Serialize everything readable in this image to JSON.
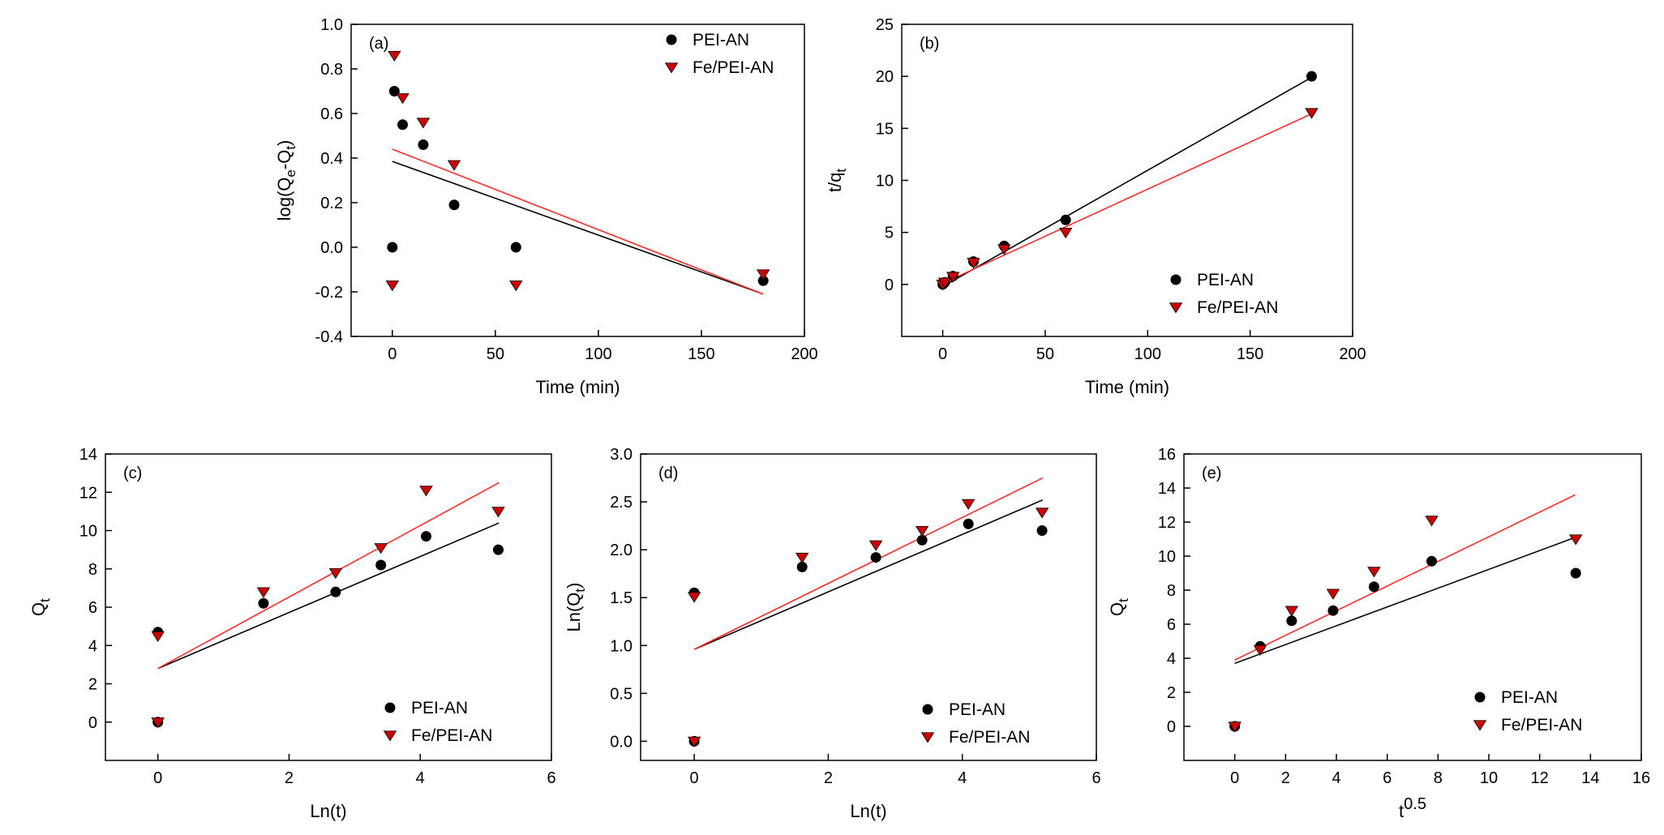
{
  "figure": {
    "series_styles": [
      {
        "name": "PEI-AN",
        "marker": "circle",
        "color": "#000000"
      },
      {
        "name": "Fe/PEI-AN",
        "marker": "triangle-down",
        "color": "#cc0000"
      }
    ]
  },
  "chart_data": [
    {
      "panel_label": "(a)",
      "type": "scatter",
      "xlabel": "Time (min)",
      "ylabel": "log(Qe-Qt)",
      "ylabel_parts": [
        "log(Q",
        "e",
        "-Q",
        "t",
        ")"
      ],
      "xlim": [
        -20,
        200
      ],
      "ylim": [
        -0.4,
        1.0
      ],
      "xticks": [
        0,
        50,
        100,
        150,
        200
      ],
      "yticks": [
        -0.4,
        -0.2,
        0.0,
        0.2,
        0.4,
        0.6,
        0.8,
        1.0
      ],
      "ytick_labels": [
        "-0.4",
        "-0.2",
        "0.0",
        "0.2",
        "0.4",
        "0.6",
        "0.8",
        "1.0"
      ],
      "xtick_labels": [
        "0",
        "50",
        "100",
        "150",
        "200"
      ],
      "legend": {
        "position": "top-right",
        "entries": [
          "PEI-AN",
          "Fe/PEI-AN"
        ]
      },
      "series": [
        {
          "name": "PEI-AN",
          "x": [
            0,
            1,
            5,
            15,
            30,
            60,
            180
          ],
          "y": [
            0.0,
            0.7,
            0.55,
            0.46,
            0.19,
            0.0,
            -0.15
          ],
          "fit": {
            "x": [
              0,
              180
            ],
            "y": [
              0.385,
              -0.21
            ]
          }
        },
        {
          "name": "Fe/PEI-AN",
          "x": [
            0,
            1,
            5,
            15,
            30,
            60,
            180
          ],
          "y": [
            -0.17,
            0.86,
            0.67,
            0.56,
            0.37,
            -0.17,
            -0.12
          ],
          "fit": {
            "x": [
              0,
              180
            ],
            "y": [
              0.44,
              -0.21
            ]
          }
        }
      ]
    },
    {
      "panel_label": "(b)",
      "type": "scatter",
      "xlabel": "Time (min)",
      "ylabel": "t/qt",
      "ylabel_parts": [
        "t/q",
        "t",
        "",
        "",
        ""
      ],
      "xlim": [
        -20,
        200
      ],
      "ylim": [
        -5,
        25
      ],
      "xticks": [
        0,
        50,
        100,
        150,
        200
      ],
      "yticks": [
        0,
        5,
        10,
        15,
        20,
        25
      ],
      "ytick_labels": [
        "0",
        "5",
        "10",
        "15",
        "20",
        "25"
      ],
      "xtick_labels": [
        "0",
        "50",
        "100",
        "150",
        "200"
      ],
      "legend": {
        "position": "bottom-right",
        "entries": [
          "PEI-AN",
          "Fe/PEI-AN"
        ]
      },
      "series": [
        {
          "name": "PEI-AN",
          "x": [
            0,
            1,
            5,
            15,
            30,
            60,
            180
          ],
          "y": [
            0.0,
            0.2,
            0.8,
            2.2,
            3.7,
            6.2,
            20.0
          ],
          "fit": {
            "x": [
              0,
              180
            ],
            "y": [
              -0.2,
              19.9
            ]
          }
        },
        {
          "name": "Fe/PEI-AN",
          "x": [
            0,
            1,
            5,
            15,
            30,
            60,
            180
          ],
          "y": [
            0.0,
            0.2,
            0.75,
            2.1,
            3.4,
            5.0,
            16.5
          ],
          "fit": {
            "x": [
              0,
              180
            ],
            "y": [
              0.1,
              16.4
            ]
          }
        }
      ]
    },
    {
      "panel_label": "(c)",
      "type": "scatter",
      "xlabel": "Ln(t)",
      "ylabel": "Qt",
      "ylabel_parts": [
        "Q",
        "t",
        "",
        "",
        ""
      ],
      "xlim": [
        -0.8,
        6
      ],
      "ylim": [
        -2,
        14
      ],
      "xticks": [
        0,
        2,
        4,
        6
      ],
      "yticks": [
        0,
        2,
        4,
        6,
        8,
        10,
        12,
        14
      ],
      "ytick_labels": [
        "0",
        "2",
        "4",
        "6",
        "8",
        "10",
        "12",
        "14"
      ],
      "xtick_labels": [
        "0",
        "2",
        "4",
        "6"
      ],
      "legend": {
        "position": "bottom-right",
        "entries": [
          "PEI-AN",
          "Fe/PEI-AN"
        ]
      },
      "series": [
        {
          "name": "PEI-AN",
          "x": [
            0,
            0,
            1.61,
            2.71,
            3.4,
            4.09,
            5.19
          ],
          "y": [
            0.0,
            4.7,
            6.2,
            6.8,
            8.2,
            9.7,
            9.0
          ],
          "fit": {
            "x": [
              0,
              5.2
            ],
            "y": [
              2.8,
              10.4
            ]
          }
        },
        {
          "name": "Fe/PEI-AN",
          "x": [
            0,
            0,
            1.61,
            2.71,
            3.4,
            4.09,
            5.19
          ],
          "y": [
            0.0,
            4.5,
            6.8,
            7.8,
            9.1,
            12.1,
            11.0
          ],
          "fit": {
            "x": [
              0,
              5.2
            ],
            "y": [
              2.8,
              12.5
            ]
          }
        }
      ]
    },
    {
      "panel_label": "(d)",
      "type": "scatter",
      "xlabel": "Ln(t)",
      "ylabel": "Ln(Qt)",
      "ylabel_parts": [
        "Ln(Q",
        "t",
        ")",
        "",
        ""
      ],
      "xlim": [
        -0.8,
        6
      ],
      "ylim": [
        -0.2,
        3.0
      ],
      "xticks": [
        0,
        2,
        4,
        6
      ],
      "yticks": [
        0.0,
        0.5,
        1.0,
        1.5,
        2.0,
        2.5,
        3.0
      ],
      "ytick_labels": [
        "0.0",
        "0.5",
        "1.0",
        "1.5",
        "2.0",
        "2.5",
        "3.0"
      ],
      "xtick_labels": [
        "0",
        "2",
        "4",
        "6"
      ],
      "legend": {
        "position": "bottom-right",
        "entries": [
          "PEI-AN",
          "Fe/PEI-AN"
        ]
      },
      "series": [
        {
          "name": "PEI-AN",
          "x": [
            0,
            0,
            1.61,
            2.71,
            3.4,
            4.09,
            5.19
          ],
          "y": [
            0.0,
            1.55,
            1.82,
            1.92,
            2.1,
            2.27,
            2.2
          ],
          "fit": {
            "x": [
              0,
              5.2
            ],
            "y": [
              0.96,
              2.52
            ]
          }
        },
        {
          "name": "Fe/PEI-AN",
          "x": [
            0,
            0,
            1.61,
            2.71,
            3.4,
            4.09,
            5.19
          ],
          "y": [
            0.0,
            1.51,
            1.92,
            2.05,
            2.2,
            2.48,
            2.39
          ],
          "fit": {
            "x": [
              0,
              5.2
            ],
            "y": [
              0.96,
              2.75
            ]
          }
        }
      ]
    },
    {
      "panel_label": "(e)",
      "type": "scatter",
      "xlabel": "t0.5",
      "xlabel_parts": [
        "t",
        "0.5"
      ],
      "ylabel": "Qt",
      "ylabel_parts": [
        "Q",
        "t",
        "",
        "",
        ""
      ],
      "xlim": [
        -2,
        16
      ],
      "ylim": [
        -2,
        16
      ],
      "xticks": [
        0,
        2,
        4,
        6,
        8,
        10,
        12,
        14,
        16
      ],
      "yticks": [
        0,
        2,
        4,
        6,
        8,
        10,
        12,
        14,
        16
      ],
      "ytick_labels": [
        "0",
        "2",
        "4",
        "6",
        "8",
        "10",
        "12",
        "14",
        "16"
      ],
      "xtick_labels": [
        "0",
        "2",
        "4",
        "6",
        "8",
        "10",
        "12",
        "14",
        "16"
      ],
      "legend": {
        "position": "bottom-right",
        "entries": [
          "PEI-AN",
          "Fe/PEI-AN"
        ]
      },
      "series": [
        {
          "name": "PEI-AN",
          "x": [
            0,
            1.0,
            2.24,
            3.87,
            5.48,
            7.75,
            13.42
          ],
          "y": [
            0.0,
            4.7,
            6.2,
            6.8,
            8.2,
            9.7,
            9.0
          ],
          "fit": {
            "x": [
              0,
              13.4
            ],
            "y": [
              3.7,
              11.1
            ]
          }
        },
        {
          "name": "Fe/PEI-AN",
          "x": [
            0,
            1.0,
            2.24,
            3.87,
            5.48,
            7.75,
            13.42
          ],
          "y": [
            0.0,
            4.5,
            6.8,
            7.8,
            9.1,
            12.1,
            11.0
          ],
          "fit": {
            "x": [
              0,
              13.4
            ],
            "y": [
              3.9,
              13.6
            ]
          }
        }
      ]
    }
  ]
}
